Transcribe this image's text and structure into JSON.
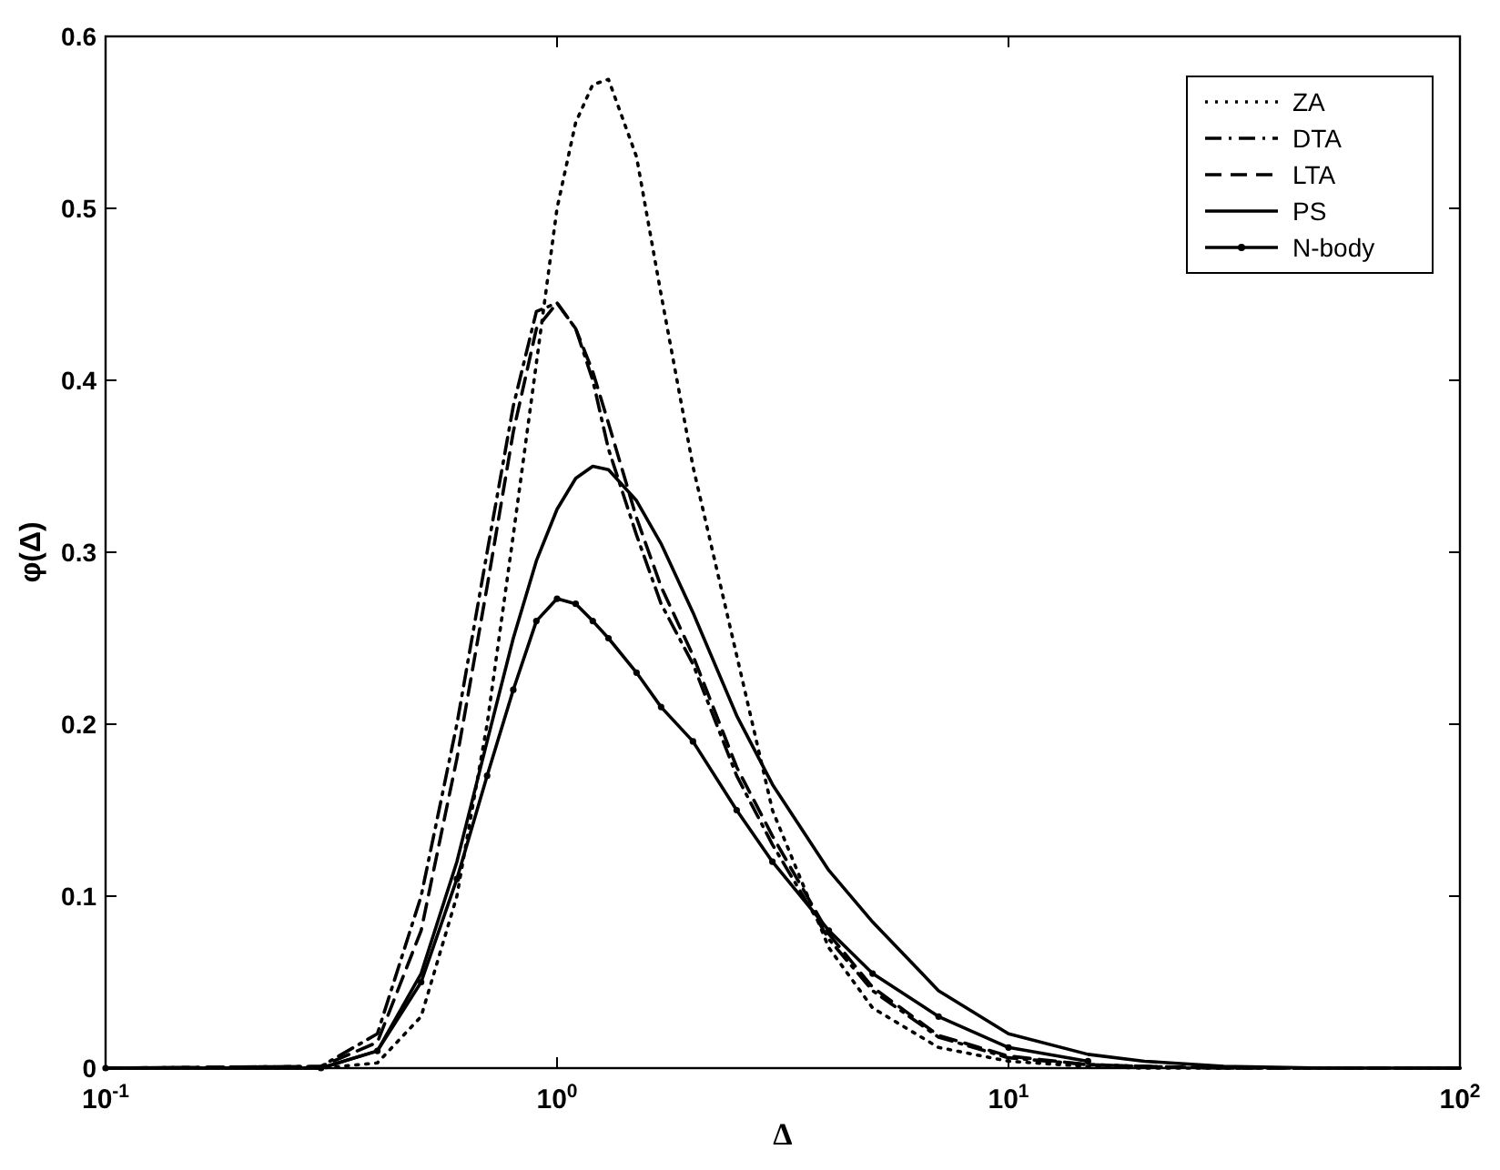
{
  "chart_data": {
    "type": "line",
    "xlabel": "Δ",
    "ylabel": "φ(Δ)",
    "log": "x",
    "legend": "top right",
    "grid": false,
    "x": [
      0.1,
      0.3,
      0.4,
      0.5,
      0.6,
      0.7,
      0.8,
      0.9,
      1.0,
      1.1,
      1.2,
      1.3,
      1.5,
      1.7,
      2,
      2.5,
      3,
      4,
      5,
      7,
      10,
      15,
      20,
      30,
      50,
      100
    ],
    "xlim": [
      0.1,
      100
    ],
    "ylim": [
      0,
      0.6
    ],
    "xticks": [
      {
        "value": 0.1,
        "label": "10$^{-1}$"
      },
      {
        "value": 1,
        "label": "10$^{0}$"
      },
      {
        "value": 10,
        "label": "10$^{1}$"
      },
      {
        "value": 100,
        "label": "10$^{2}$"
      }
    ],
    "yticks": [
      0,
      0.1,
      0.2,
      0.3,
      0.4,
      0.5,
      0.6
    ],
    "series": [
      {
        "name": "ZA",
        "color": "#000000",
        "line_style": "dotted",
        "values": [
          0,
          0,
          0.003,
          0.03,
          0.1,
          0.2,
          0.31,
          0.41,
          0.5,
          0.55,
          0.572,
          0.575,
          0.53,
          0.45,
          0.35,
          0.24,
          0.15,
          0.07,
          0.035,
          0.012,
          0.004,
          0.001,
          0,
          0,
          0,
          0
        ]
      },
      {
        "name": "DTA",
        "color": "#000000",
        "line_style": "dashdot",
        "values": [
          0,
          0.001,
          0.02,
          0.1,
          0.2,
          0.3,
          0.385,
          0.44,
          0.445,
          0.43,
          0.4,
          0.36,
          0.31,
          0.27,
          0.235,
          0.17,
          0.13,
          0.075,
          0.045,
          0.018,
          0.006,
          0.002,
          0.001,
          0,
          0,
          0
        ]
      },
      {
        "name": "LTA",
        "color": "#000000",
        "line_style": "dashed",
        "values": [
          0,
          0.001,
          0.015,
          0.08,
          0.18,
          0.28,
          0.37,
          0.43,
          0.445,
          0.43,
          0.405,
          0.375,
          0.32,
          0.28,
          0.24,
          0.175,
          0.135,
          0.078,
          0.047,
          0.019,
          0.007,
          0.002,
          0.001,
          0,
          0,
          0
        ]
      },
      {
        "name": "PS",
        "color": "#000000",
        "line_style": "solid",
        "values": [
          0,
          0,
          0.01,
          0.055,
          0.12,
          0.19,
          0.25,
          0.295,
          0.325,
          0.343,
          0.35,
          0.348,
          0.33,
          0.305,
          0.265,
          0.205,
          0.165,
          0.115,
          0.085,
          0.045,
          0.02,
          0.008,
          0.004,
          0.001,
          0,
          0
        ]
      },
      {
        "name": "N-body",
        "color": "#000000",
        "line_style": "solid",
        "marker": "circle",
        "values": [
          0,
          0,
          0.01,
          0.05,
          0.11,
          0.17,
          0.22,
          0.26,
          0.273,
          0.27,
          0.26,
          0.25,
          0.23,
          0.21,
          0.19,
          0.15,
          0.12,
          0.08,
          0.055,
          0.03,
          0.012,
          0.004,
          null,
          null,
          null,
          null
        ]
      }
    ]
  }
}
